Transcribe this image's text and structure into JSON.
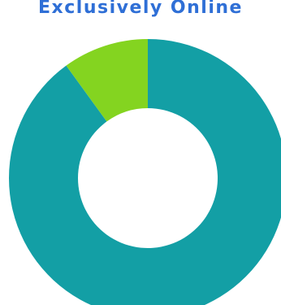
{
  "colors": {
    "title": "#2f6fd6",
    "background": "#ffffff"
  },
  "chart_data": {
    "type": "pie",
    "title": "Exclusively Online",
    "style": "donut",
    "categories": [
      "",
      ""
    ],
    "series": [
      {
        "values": [
          90,
          10
        ],
        "colors": [
          "#139fa5",
          "#84d420"
        ]
      }
    ],
    "legend": "none"
  }
}
